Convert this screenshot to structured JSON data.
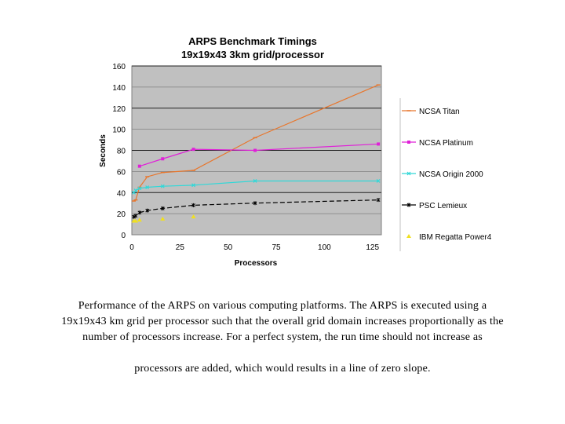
{
  "chart_data": {
    "type": "line",
    "title": "ARPS Benchmark Timings",
    "subtitle": "19x19x43 3km grid/processor",
    "xlabel": "Processors",
    "ylabel": "Seconds",
    "xlim": [
      0,
      130
    ],
    "ylim": [
      0,
      160
    ],
    "xticks": [
      "0",
      "25",
      "50",
      "75",
      "100",
      "125"
    ],
    "yticks": [
      "0",
      "20",
      "40",
      "60",
      "80",
      "100",
      "120",
      "140",
      "160"
    ],
    "series": [
      {
        "name": "NCSA Titan",
        "color": "#e8762c",
        "marker": "dash",
        "x": [
          1,
          2,
          4,
          8,
          16,
          32,
          64,
          128
        ],
        "y": [
          32,
          33,
          45,
          55,
          59,
          61,
          92,
          142
        ]
      },
      {
        "name": "NCSA Platinum",
        "color": "#e020d8",
        "marker": "square",
        "x": [
          4,
          16,
          32,
          64,
          128
        ],
        "y": [
          65,
          72,
          81,
          80,
          86
        ]
      },
      {
        "name": "NCSA Origin 2000",
        "color": "#30d8d8",
        "marker": "x",
        "x": [
          1,
          2,
          4,
          8,
          16,
          32,
          64,
          128
        ],
        "y": [
          40,
          42,
          44,
          45,
          46,
          47,
          51,
          51
        ]
      },
      {
        "name": "PSC Lemieux",
        "color": "#000000",
        "marker": "star",
        "x": [
          1,
          2,
          4,
          8,
          16,
          32,
          64,
          128
        ],
        "y": [
          17,
          18,
          21,
          23,
          25,
          28,
          30,
          33
        ]
      },
      {
        "name": "IBM Regatta Power4",
        "color": "#f0e020",
        "marker": "triangle",
        "x": [
          1,
          2,
          4,
          16,
          32
        ],
        "y": [
          13,
          13,
          14,
          15,
          17
        ]
      }
    ],
    "legend_position": "right"
  },
  "caption": {
    "line1": "Performance of the ARPS on various computing platforms.  The ARPS is executed using a",
    "line2": "19x19x43 km grid per processor such that the overall grid domain increases proportionally as the",
    "line3": "number of processors increase.  For a perfect system, the run time should not increase as",
    "line4": "processors are added, which would results in a line of zero slope."
  }
}
